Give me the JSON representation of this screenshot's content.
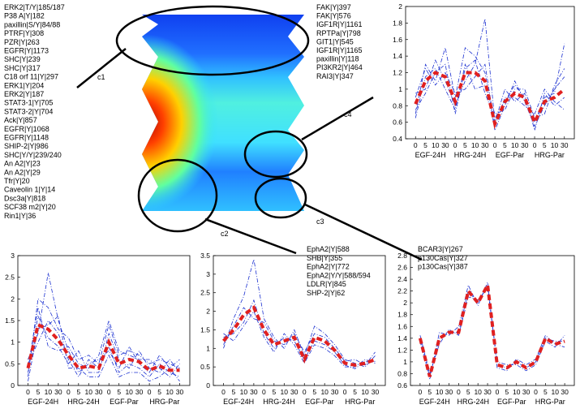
{
  "figure": {
    "left_protein_list": [
      "ERK2|T/Y|185/187",
      "P38 A|Y|182",
      "paxillin|S/Y|84/88",
      "PTRF|Y|308",
      "PZR|Y|263",
      "EGFR|Y|1173",
      "SHC|Y|239",
      "SHC|Y|317",
      "C18 orf 11|Y|297",
      "ERK1|Y|204",
      "ERK2|Y|187",
      "STAT3-1|Y|705",
      "STAT3-2|Y|704",
      "Ack|Y|857",
      "EGFR|Y|1068",
      "EGFR|Y|1148",
      "SHIP-2|Y|986",
      "SHC|Y/Y|239/240",
      "An A2|Y|23",
      "An A2|Y|29",
      "Tfr|Y|20",
      "Caveolin 1|Y|14",
      "Dsc3a|Y|818",
      "SCF38 m2|Y|20",
      "Rin1|Y|36"
    ],
    "top_right_protein_list": [
      "FAK|Y|397",
      "FAK|Y|576",
      "IGF1R|Y|1161",
      "RPTPa|Y|798",
      "GIT1|Y|545",
      "IGF1R|Y|1165",
      "paxillin|Y|118",
      "PI3KR2|Y|464",
      "RAI3|Y|347"
    ],
    "c2_protein_list": [
      "EphA2|Y|588",
      "SHB|Y|355",
      "EphA2|Y|772",
      "EphA2|Y/Y|588/594",
      "LDLR|Y|845",
      "SHP-2|Y|62"
    ],
    "c3_protein_list": [
      "BCAR3|Y|267",
      "p130Cas|Y|327",
      "p130Cas|Y|387"
    ],
    "cluster_labels": [
      "c1",
      "c2",
      "c3",
      "c4"
    ],
    "time_ticks": [
      "0",
      "5",
      "10",
      "30"
    ],
    "condition_labels": [
      "EGF-24H",
      "HRG-24H",
      "EGF-Par",
      "HRG-Par"
    ],
    "colors": {
      "mean_line": "#e02020",
      "member_line": "#1a2fd0",
      "ellipse": "#000000"
    }
  },
  "chart_data": [
    {
      "id": "c4-top-right",
      "type": "line",
      "title": "",
      "xlabel": "",
      "ylabel": "",
      "ylim": [
        0.4,
        2.0
      ],
      "yticks": [
        0.4,
        0.6,
        0.8,
        1,
        1.2,
        1.4,
        1.6,
        1.8,
        2
      ],
      "categories": [
        "EGF-24H",
        "HRG-24H",
        "EGF-Par",
        "HRG-Par"
      ],
      "x_points_per_group": [
        "0",
        "5",
        "10",
        "30"
      ],
      "mean": [
        0.82,
        1.1,
        1.2,
        1.15,
        0.85,
        1.2,
        1.2,
        1.1,
        0.58,
        0.85,
        0.95,
        0.9,
        0.6,
        0.85,
        0.9,
        1.0
      ],
      "members": [
        [
          0.7,
          1.3,
          1.1,
          1.5,
          0.9,
          1.5,
          1.4,
          1.2,
          0.5,
          0.8,
          1.1,
          0.85,
          0.55,
          0.8,
          1.0,
          1.15
        ],
        [
          0.95,
          1.0,
          1.35,
          1.1,
          0.8,
          1.1,
          1.3,
          1.85,
          0.6,
          1.0,
          0.85,
          0.95,
          0.5,
          0.95,
          0.8,
          0.9
        ],
        [
          0.65,
          1.15,
          1.25,
          1.0,
          0.75,
          1.3,
          1.0,
          1.05,
          0.7,
          0.75,
          1.0,
          1.0,
          0.65,
          0.7,
          1.05,
          1.25
        ],
        [
          0.9,
          1.25,
          1.05,
          1.2,
          0.95,
          1.0,
          1.15,
          1.3,
          0.55,
          0.9,
          0.9,
          0.8,
          0.7,
          1.0,
          0.85,
          0.75
        ],
        [
          0.75,
          0.95,
          1.2,
          1.3,
          0.7,
          1.25,
          1.35,
          0.95,
          0.65,
          0.85,
          1.05,
          0.9,
          0.6,
          0.9,
          0.95,
          1.55
        ]
      ]
    },
    {
      "id": "c1-bottom-left",
      "type": "line",
      "title": "",
      "xlabel": "",
      "ylabel": "",
      "ylim": [
        0,
        3
      ],
      "yticks": [
        0,
        0.5,
        1,
        1.5,
        2,
        2.5,
        3
      ],
      "categories": [
        "EGF-24H",
        "HRG-24H",
        "EGF-Par",
        "HRG-Par"
      ],
      "x_points_per_group": [
        "0",
        "5",
        "10",
        "30"
      ],
      "mean": [
        0.4,
        1.4,
        1.3,
        1.05,
        0.7,
        0.4,
        0.45,
        0.4,
        1.0,
        0.5,
        0.6,
        0.55,
        0.35,
        0.45,
        0.35,
        0.35
      ],
      "members": [
        [
          0.2,
          2.0,
          1.8,
          1.3,
          1.1,
          0.6,
          0.7,
          0.5,
          1.4,
          0.7,
          0.8,
          0.7,
          0.5,
          0.6,
          0.5,
          0.4
        ],
        [
          0.6,
          1.2,
          2.6,
          1.5,
          0.8,
          0.3,
          0.5,
          0.6,
          0.8,
          0.4,
          0.9,
          0.5,
          0.3,
          0.7,
          0.4,
          0.6
        ],
        [
          0.3,
          1.6,
          1.1,
          0.9,
          0.5,
          0.8,
          0.3,
          0.3,
          1.2,
          0.6,
          0.4,
          0.8,
          0.4,
          0.3,
          0.6,
          0.3
        ],
        [
          0.5,
          1.0,
          1.5,
          1.2,
          0.6,
          0.2,
          0.6,
          0.4,
          0.9,
          0.3,
          0.5,
          0.4,
          0.2,
          0.5,
          0.3,
          0.2
        ],
        [
          0.4,
          1.8,
          0.9,
          0.8,
          0.9,
          0.5,
          0.4,
          0.7,
          1.5,
          0.8,
          0.7,
          0.6,
          0.6,
          0.4,
          0.2,
          0.5
        ],
        [
          0.1,
          1.3,
          1.4,
          1.6,
          0.4,
          0.4,
          0.2,
          0.2,
          0.7,
          0.2,
          0.3,
          0.3,
          0.1,
          0.2,
          0.4,
          0.1
        ]
      ]
    },
    {
      "id": "c2-bottom-middle",
      "type": "line",
      "title": "",
      "xlabel": "",
      "ylabel": "",
      "ylim": [
        0,
        3.5
      ],
      "yticks": [
        0,
        0.5,
        1,
        1.5,
        2,
        2.5,
        3,
        3.5
      ],
      "categories": [
        "EGF-24H",
        "HRG-24H",
        "EGF-Par",
        "HRG-Par"
      ],
      "x_points_per_group": [
        "0",
        "5",
        "10",
        "30"
      ],
      "mean": [
        1.2,
        1.5,
        1.9,
        2.1,
        1.5,
        1.1,
        1.2,
        1.3,
        0.7,
        1.3,
        1.2,
        0.95,
        0.6,
        0.55,
        0.6,
        0.7
      ],
      "members": [
        [
          1.0,
          1.8,
          2.4,
          3.4,
          1.8,
          1.3,
          1.0,
          1.5,
          0.8,
          1.6,
          1.4,
          1.1,
          0.7,
          0.6,
          0.5,
          0.8
        ],
        [
          1.4,
          1.2,
          1.6,
          2.0,
          1.3,
          0.9,
          1.4,
          1.1,
          0.6,
          1.1,
          1.0,
          0.8,
          0.5,
          0.5,
          0.7,
          0.6
        ],
        [
          1.1,
          1.6,
          2.1,
          1.8,
          1.7,
          1.2,
          1.1,
          1.4,
          0.9,
          1.4,
          1.3,
          1.0,
          0.65,
          0.7,
          0.55,
          0.9
        ],
        [
          1.3,
          1.4,
          1.7,
          2.3,
          1.4,
          1.0,
          1.3,
          1.2,
          0.7,
          1.2,
          1.1,
          0.9,
          0.55,
          0.45,
          0.65,
          0.65
        ]
      ]
    },
    {
      "id": "c3-bottom-right",
      "type": "line",
      "title": "",
      "xlabel": "",
      "ylabel": "",
      "ylim": [
        0.6,
        2.8
      ],
      "yticks": [
        0.6,
        0.8,
        1,
        1.2,
        1.4,
        1.6,
        1.8,
        2,
        2.2,
        2.4,
        2.6,
        2.8
      ],
      "categories": [
        "EGF-24H",
        "HRG-24H",
        "EGF-Par",
        "HRG-Par"
      ],
      "x_points_per_group": [
        "0",
        "5",
        "10",
        "30"
      ],
      "mean": [
        1.4,
        0.75,
        1.4,
        1.5,
        1.5,
        2.2,
        2.0,
        2.3,
        0.95,
        0.9,
        1.0,
        0.9,
        1.0,
        1.4,
        1.3,
        1.35
      ],
      "members": [
        [
          1.35,
          0.7,
          1.5,
          1.45,
          1.6,
          2.3,
          1.95,
          2.35,
          0.9,
          0.85,
          1.05,
          0.95,
          1.05,
          1.45,
          1.3,
          1.25
        ],
        [
          1.45,
          0.8,
          1.3,
          1.55,
          1.45,
          2.1,
          2.05,
          2.25,
          1.0,
          0.95,
          0.95,
          0.85,
          0.95,
          1.35,
          1.25,
          1.45
        ],
        [
          1.4,
          0.75,
          1.4,
          1.5,
          1.5,
          2.2,
          2.0,
          2.3,
          0.95,
          0.9,
          1.0,
          0.9,
          1.0,
          1.4,
          1.35,
          1.35
        ]
      ]
    }
  ]
}
